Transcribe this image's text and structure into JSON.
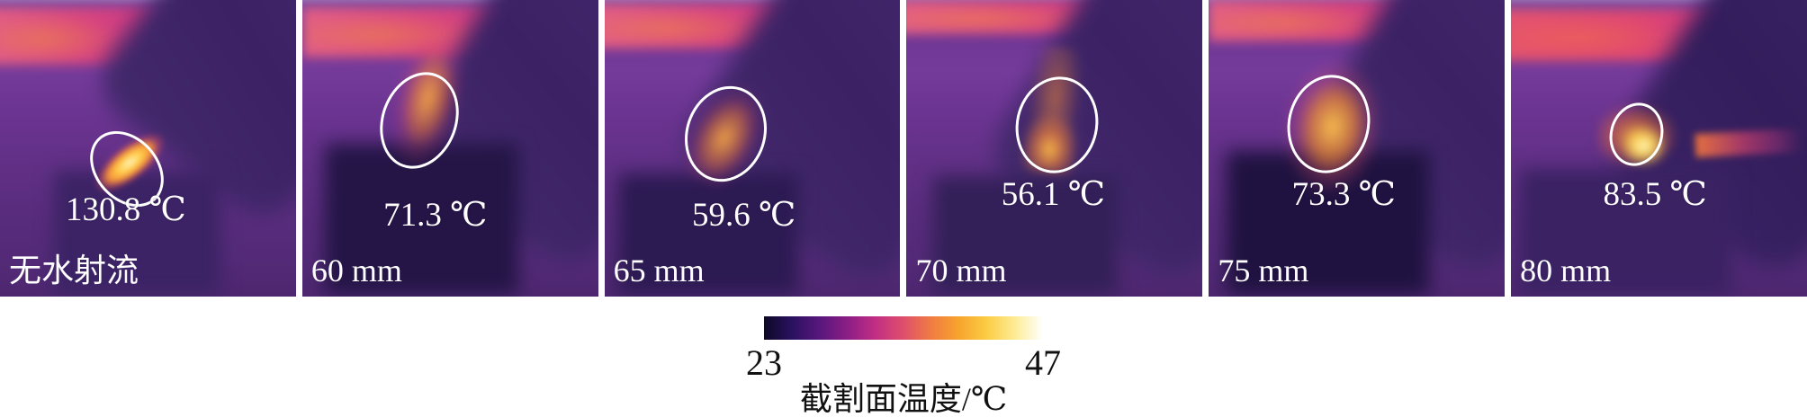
{
  "figure": {
    "panels": [
      {
        "label": "无水射流",
        "temperature": "130.8 ℃"
      },
      {
        "label": "60 mm",
        "temperature": "71.3 ℃"
      },
      {
        "label": "65 mm",
        "temperature": "59.6 ℃"
      },
      {
        "label": "70 mm",
        "temperature": "56.1 ℃"
      },
      {
        "label": "75 mm",
        "temperature": "73.3 ℃"
      },
      {
        "label": "80 mm",
        "temperature": "83.5 ℃"
      }
    ],
    "colorbar": {
      "min": "23",
      "max": "47",
      "caption": "截割面温度/℃",
      "gradient_colors": [
        "#0d0826",
        "#2a1160",
        "#58177d",
        "#8c1e86",
        "#c22e83",
        "#de4f6c",
        "#f07c42",
        "#f7a52d",
        "#fbcd45",
        "#fdec95",
        "#ffffff"
      ]
    }
  }
}
